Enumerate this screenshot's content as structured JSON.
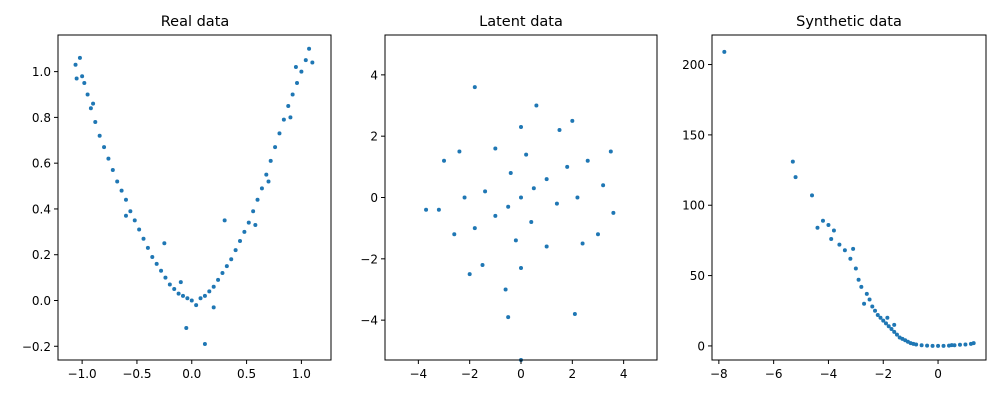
{
  "figure": {
    "marker_color": "#1f77b4"
  },
  "chart_data": [
    {
      "type": "scatter",
      "title": "Real data",
      "xlabel": "",
      "ylabel": "",
      "xlim": [
        -1.22,
        1.27
      ],
      "ylim": [
        -0.26,
        1.16
      ],
      "xticks": [
        -1.0,
        -0.5,
        0.0,
        0.5,
        1.0
      ],
      "xtick_labels": [
        "−1.0",
        "−0.5",
        "0.0",
        "0.5",
        "1.0"
      ],
      "yticks": [
        -0.2,
        0.0,
        0.2,
        0.4,
        0.6,
        0.8,
        1.0
      ],
      "ytick_labels": [
        "−0.2",
        "0.0",
        "0.2",
        "0.4",
        "0.6",
        "0.8",
        "1.0"
      ],
      "grid": false,
      "legend": "none",
      "points": [
        [
          -1.06,
          1.03
        ],
        [
          -1.02,
          1.06
        ],
        [
          -1.0,
          0.98
        ],
        [
          -0.98,
          0.95
        ],
        [
          -0.95,
          0.9
        ],
        [
          -0.92,
          0.84
        ],
        [
          -0.88,
          0.78
        ],
        [
          -0.84,
          0.72
        ],
        [
          -0.8,
          0.67
        ],
        [
          -0.76,
          0.62
        ],
        [
          -0.72,
          0.57
        ],
        [
          -0.68,
          0.52
        ],
        [
          -0.64,
          0.48
        ],
        [
          -0.6,
          0.44
        ],
        [
          -0.56,
          0.39
        ],
        [
          -0.52,
          0.35
        ],
        [
          -0.48,
          0.31
        ],
        [
          -0.44,
          0.27
        ],
        [
          -0.4,
          0.23
        ],
        [
          -0.36,
          0.19
        ],
        [
          -0.32,
          0.16
        ],
        [
          -0.28,
          0.13
        ],
        [
          -0.24,
          0.1
        ],
        [
          -0.2,
          0.07
        ],
        [
          -0.16,
          0.05
        ],
        [
          -0.12,
          0.03
        ],
        [
          -0.08,
          0.02
        ],
        [
          -0.04,
          0.01
        ],
        [
          0.0,
          0.0
        ],
        [
          0.04,
          -0.02
        ],
        [
          0.08,
          0.01
        ],
        [
          0.12,
          0.02
        ],
        [
          0.16,
          0.04
        ],
        [
          0.2,
          0.06
        ],
        [
          0.24,
          0.09
        ],
        [
          0.28,
          0.12
        ],
        [
          0.32,
          0.15
        ],
        [
          0.36,
          0.18
        ],
        [
          0.4,
          0.22
        ],
        [
          0.44,
          0.26
        ],
        [
          0.48,
          0.3
        ],
        [
          0.52,
          0.34
        ],
        [
          0.56,
          0.39
        ],
        [
          0.6,
          0.44
        ],
        [
          0.64,
          0.49
        ],
        [
          0.68,
          0.55
        ],
        [
          0.72,
          0.61
        ],
        [
          0.76,
          0.67
        ],
        [
          0.8,
          0.73
        ],
        [
          0.84,
          0.79
        ],
        [
          0.88,
          0.85
        ],
        [
          0.92,
          0.9
        ],
        [
          0.96,
          0.95
        ],
        [
          1.0,
          1.0
        ],
        [
          1.04,
          1.05
        ],
        [
          1.07,
          1.1
        ],
        [
          -0.05,
          -0.12
        ],
        [
          0.12,
          -0.19
        ],
        [
          -0.25,
          0.25
        ],
        [
          0.3,
          0.35
        ],
        [
          -1.05,
          0.97
        ],
        [
          0.95,
          1.02
        ],
        [
          0.9,
          0.8
        ],
        [
          -0.9,
          0.86
        ],
        [
          0.58,
          0.33
        ],
        [
          -0.6,
          0.37
        ],
        [
          0.7,
          0.52
        ],
        [
          -0.1,
          0.08
        ],
        [
          0.2,
          -0.03
        ],
        [
          1.1,
          1.04
        ]
      ]
    },
    {
      "type": "scatter",
      "title": "Latent data",
      "xlabel": "",
      "ylabel": "",
      "xlim": [
        -5.3,
        5.3
      ],
      "ylim": [
        -5.3,
        5.3
      ],
      "xticks": [
        -4,
        -2,
        0,
        2,
        4
      ],
      "xtick_labels": [
        "−4",
        "−2",
        "0",
        "2",
        "4"
      ],
      "yticks": [
        -4,
        -2,
        0,
        2,
        4
      ],
      "ytick_labels": [
        "−4",
        "−2",
        "0",
        "2",
        "4"
      ],
      "grid": false,
      "legend": "none",
      "points": [
        [
          0.0,
          0.0
        ],
        [
          0.5,
          0.3
        ],
        [
          -0.5,
          -0.3
        ],
        [
          1.0,
          0.6
        ],
        [
          -1.0,
          -0.6
        ],
        [
          0.4,
          -0.8
        ],
        [
          -0.4,
          0.8
        ],
        [
          1.4,
          -0.2
        ],
        [
          -1.4,
          0.2
        ],
        [
          0.2,
          1.4
        ],
        [
          -0.2,
          -1.4
        ],
        [
          1.8,
          1.0
        ],
        [
          -1.8,
          -1.0
        ],
        [
          1.0,
          -1.6
        ],
        [
          -1.0,
          1.6
        ],
        [
          2.2,
          0.0
        ],
        [
          -2.2,
          0.0
        ],
        [
          0.0,
          2.3
        ],
        [
          0.0,
          -2.3
        ],
        [
          2.6,
          1.2
        ],
        [
          -2.6,
          -1.2
        ],
        [
          1.5,
          2.2
        ],
        [
          -1.5,
          -2.2
        ],
        [
          2.4,
          -1.5
        ],
        [
          -2.4,
          1.5
        ],
        [
          3.2,
          0.4
        ],
        [
          -3.2,
          -0.4
        ],
        [
          0.6,
          3.0
        ],
        [
          -0.6,
          -3.0
        ],
        [
          3.0,
          -1.2
        ],
        [
          -3.0,
          1.2
        ],
        [
          2.0,
          2.5
        ],
        [
          -2.0,
          -2.5
        ],
        [
          3.6,
          -0.5
        ],
        [
          -3.7,
          -0.4
        ],
        [
          -1.8,
          3.6
        ],
        [
          0.0,
          -5.3
        ],
        [
          2.1,
          -3.8
        ],
        [
          -0.5,
          -3.9
        ],
        [
          3.5,
          1.5
        ]
      ]
    },
    {
      "type": "scatter",
      "title": "Synthetic data",
      "xlabel": "",
      "ylabel": "",
      "xlim": [
        -8.25,
        1.75
      ],
      "ylim": [
        -10,
        221
      ],
      "xticks": [
        -8,
        -6,
        -4,
        -2,
        0
      ],
      "xtick_labels": [
        "−8",
        "−6",
        "−4",
        "−2",
        "0"
      ],
      "yticks": [
        0,
        50,
        100,
        150,
        200
      ],
      "ytick_labels": [
        "0",
        "50",
        "100",
        "150",
        "200"
      ],
      "grid": false,
      "legend": "none",
      "points": [
        [
          -7.8,
          209
        ],
        [
          -5.3,
          131
        ],
        [
          -5.2,
          120
        ],
        [
          -4.6,
          107
        ],
        [
          -4.4,
          84
        ],
        [
          -4.2,
          89
        ],
        [
          -4.0,
          86
        ],
        [
          -3.8,
          82
        ],
        [
          -3.6,
          72
        ],
        [
          -3.4,
          68
        ],
        [
          -3.2,
          62
        ],
        [
          -3.0,
          55
        ],
        [
          -2.9,
          47
        ],
        [
          -2.8,
          42
        ],
        [
          -2.6,
          37
        ],
        [
          -2.5,
          33
        ],
        [
          -2.4,
          28
        ],
        [
          -2.3,
          25
        ],
        [
          -2.2,
          22
        ],
        [
          -2.1,
          20
        ],
        [
          -2.0,
          18
        ],
        [
          -1.9,
          16
        ],
        [
          -1.8,
          14
        ],
        [
          -1.7,
          12
        ],
        [
          -1.6,
          10
        ],
        [
          -1.5,
          8
        ],
        [
          -1.4,
          6
        ],
        [
          -1.3,
          5
        ],
        [
          -1.2,
          4
        ],
        [
          -1.1,
          3
        ],
        [
          -1.0,
          2
        ],
        [
          -0.8,
          1
        ],
        [
          -0.6,
          0.5
        ],
        [
          -0.4,
          0.2
        ],
        [
          -0.2,
          0
        ],
        [
          0.0,
          0
        ],
        [
          0.2,
          0
        ],
        [
          0.4,
          0.2
        ],
        [
          0.6,
          0.5
        ],
        [
          0.8,
          0.8
        ],
        [
          1.0,
          1
        ],
        [
          1.2,
          1.5
        ],
        [
          1.3,
          2
        ],
        [
          -3.9,
          76
        ],
        [
          -3.1,
          69
        ],
        [
          -1.6,
          15
        ],
        [
          -2.7,
          30
        ],
        [
          -1.85,
          20
        ],
        [
          -0.9,
          1.5
        ],
        [
          0.5,
          0.6
        ]
      ]
    }
  ]
}
